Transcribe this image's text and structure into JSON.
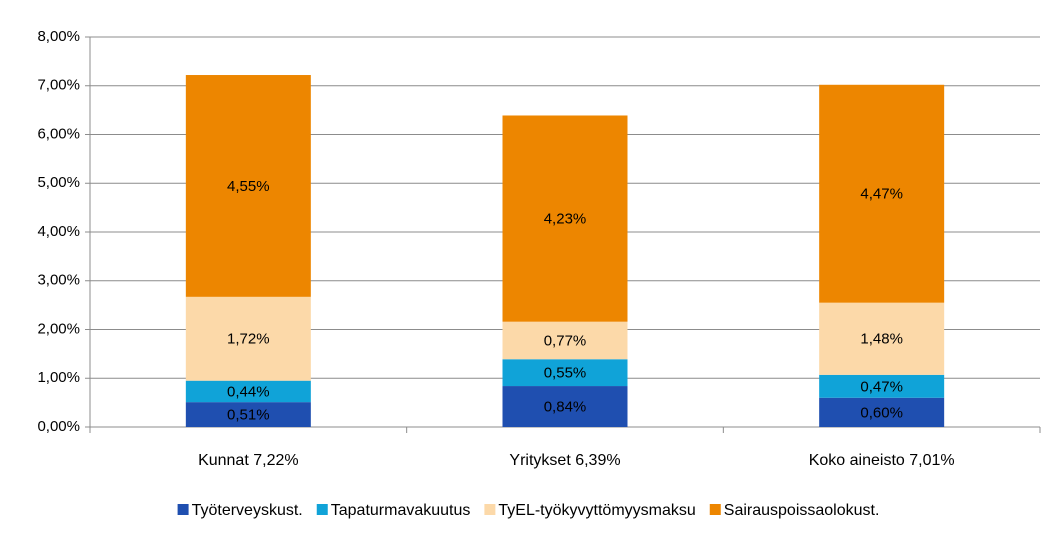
{
  "chart_data": {
    "type": "stacked_bar",
    "categories": [
      "Kunnat 7,22%",
      "Yritykset 6,39%",
      "Koko aineisto 7,01%"
    ],
    "series": [
      {
        "name": "Työterveyskust.",
        "color": "#1f4fb0",
        "values": [
          0.51,
          0.84,
          0.6
        ],
        "value_labels": [
          "0,51%",
          "0,84%",
          "0,60%"
        ]
      },
      {
        "name": "Tapaturmavakuutus",
        "color": "#10a3d8",
        "values": [
          0.44,
          0.55,
          0.47
        ],
        "value_labels": [
          "0,44%",
          "0,55%",
          "0,47%"
        ]
      },
      {
        "name": "TyEL-työkyvyttömyysmaksu",
        "color": "#fcd9a9",
        "values": [
          1.72,
          0.77,
          1.48
        ],
        "value_labels": [
          "1,72%",
          "0,77%",
          "1,48%"
        ]
      },
      {
        "name": "Sairauspoissaolokust.",
        "color": "#ed8600",
        "values": [
          4.55,
          4.23,
          4.47
        ],
        "value_labels": [
          "4,55%",
          "4,23%",
          "4,47%"
        ]
      }
    ],
    "ylim": [
      0,
      8
    ],
    "yticks": [
      {
        "value": 0,
        "label": "0,00%"
      },
      {
        "value": 1,
        "label": "1,00%"
      },
      {
        "value": 2,
        "label": "2,00%"
      },
      {
        "value": 3,
        "label": "3,00%"
      },
      {
        "value": 4,
        "label": "4,00%"
      },
      {
        "value": 5,
        "label": "5,00%"
      },
      {
        "value": 6,
        "label": "6,00%"
      },
      {
        "value": 7,
        "label": "7,00%"
      },
      {
        "value": 8,
        "label": "8,00%"
      }
    ],
    "grid": true,
    "legend": "bottom"
  }
}
